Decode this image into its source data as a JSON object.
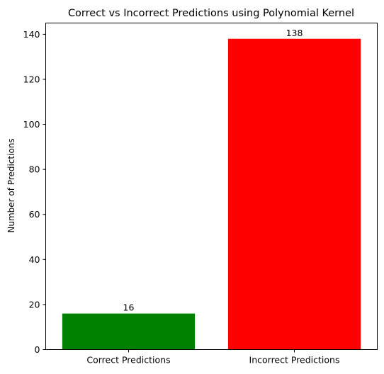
{
  "chart_data": {
    "type": "bar",
    "title": "Correct vs Incorrect Predictions using Polynomial Kernel",
    "xlabel": "",
    "ylabel": "Number of Predictions",
    "categories": [
      "Correct Predictions",
      "Incorrect Predictions"
    ],
    "values": [
      16,
      138
    ],
    "data_labels": [
      "16",
      "138"
    ],
    "colors": [
      "#008000",
      "#ff0000"
    ],
    "ylim": [
      0,
      145
    ],
    "yticks": [
      0,
      20,
      40,
      60,
      80,
      100,
      120,
      140
    ],
    "grid": false,
    "legend": "none"
  }
}
